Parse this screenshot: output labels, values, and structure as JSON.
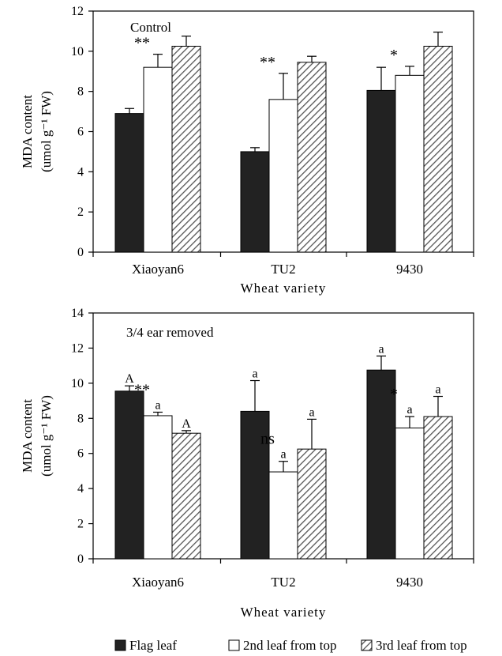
{
  "colors": {
    "flag": "#222222",
    "second": "#ffffff",
    "third_hatch": "#555555",
    "axis": "#000000"
  },
  "legend": [
    {
      "key": "flag",
      "label": "Flag leaf"
    },
    {
      "key": "second",
      "label": "2nd leaf from top"
    },
    {
      "key": "third",
      "label": "3rd leaf from top"
    }
  ],
  "chart_data": [
    {
      "type": "bar",
      "title": "Control",
      "xlabel": "Wheat variety",
      "ylabel_line1": "MDA content",
      "ylabel_line2": "(umol g⁻¹ FW)",
      "ylim": [
        0,
        12
      ],
      "yticks": [
        "0",
        "2",
        "4",
        "6",
        "8",
        "10",
        "12"
      ],
      "categories": [
        "Xiaoyan6",
        "TU2",
        "9430"
      ],
      "series": [
        {
          "key": "flag",
          "name": "Flag leaf",
          "values": [
            6.9,
            5.0,
            8.05
          ],
          "errors": [
            0.25,
            0.2,
            1.15
          ]
        },
        {
          "key": "second",
          "name": "2nd leaf from top",
          "values": [
            9.2,
            7.6,
            8.8
          ],
          "errors": [
            0.65,
            1.3,
            0.45
          ]
        },
        {
          "key": "third",
          "name": "3rd leaf from top",
          "values": [
            10.25,
            9.45,
            10.25
          ],
          "errors": [
            0.5,
            0.3,
            0.7
          ]
        }
      ],
      "significance": [
        "**",
        "**",
        "*"
      ],
      "bar_letters": null
    },
    {
      "type": "bar",
      "title": "3/4 ear removed",
      "xlabel": "Wheat variety",
      "ylabel_line1": "MDA content",
      "ylabel_line2": "(umol g⁻¹ FW)",
      "ylim": [
        0,
        14
      ],
      "yticks": [
        "0",
        "2",
        "4",
        "6",
        "8",
        "10",
        "12",
        "14"
      ],
      "categories": [
        "Xiaoyan6",
        "TU2",
        "9430"
      ],
      "series": [
        {
          "key": "flag",
          "name": "Flag leaf",
          "values": [
            9.55,
            8.4,
            10.75
          ],
          "errors": [
            0.3,
            1.75,
            0.8
          ]
        },
        {
          "key": "second",
          "name": "2nd leaf from top",
          "values": [
            8.15,
            4.95,
            7.45
          ],
          "errors": [
            0.2,
            0.6,
            0.65
          ]
        },
        {
          "key": "third",
          "name": "3rd leaf from top",
          "values": [
            7.15,
            6.25,
            8.1
          ],
          "errors": [
            0.15,
            1.7,
            1.15
          ]
        }
      ],
      "significance": [
        "**",
        "ns",
        "*"
      ],
      "bar_letters": [
        [
          "A",
          "a",
          "A"
        ],
        [
          "a",
          "a",
          "a"
        ],
        [
          "a",
          "a",
          "a"
        ]
      ]
    }
  ]
}
